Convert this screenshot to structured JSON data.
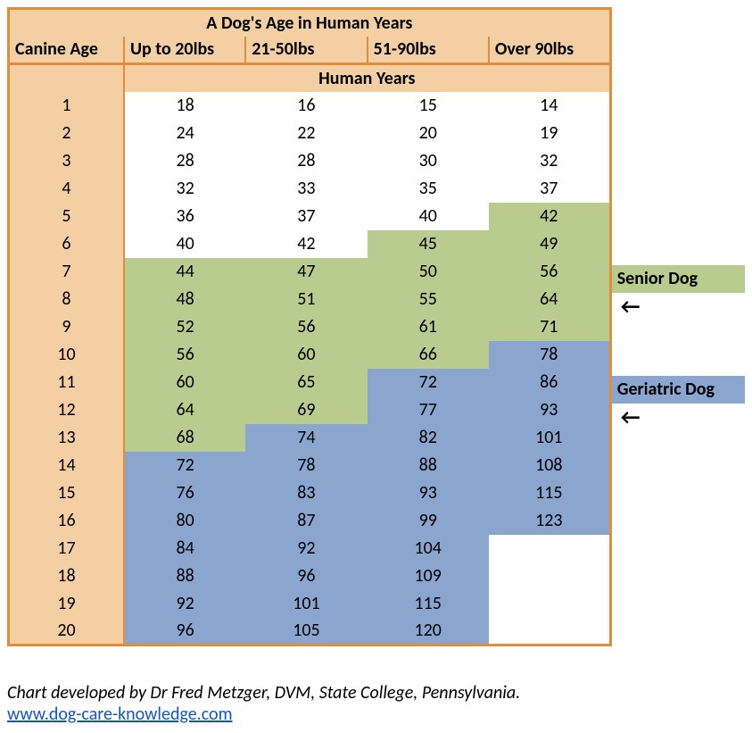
{
  "title": "A Dog's Age in Human Years",
  "columns": [
    "Canine Age",
    "Up to 20lbs",
    "21-50lbs",
    "51-90lbs",
    "Over 90lbs"
  ],
  "subheader": "Human Years",
  "colors": {
    "border": "#e08e3c",
    "header_bg": "#f5cfa4",
    "white": "#ffffff",
    "senior": "#b9cc8f",
    "geriatric": "#8aa6cf"
  },
  "legend": {
    "senior": "Senior Dog",
    "geriatric": "Geriatric Dog",
    "arrow": "←"
  },
  "credit": "Chart developed by Dr Fred Metzger, DVM, State College, Pennsylvania.",
  "url": "www.dog-care-knowledge.com",
  "rows": [
    {
      "age": "1",
      "c1": {
        "v": "18",
        "s": "white"
      },
      "c2": {
        "v": "16",
        "s": "white"
      },
      "c3": {
        "v": "15",
        "s": "white"
      },
      "c4": {
        "v": "14",
        "s": "white"
      }
    },
    {
      "age": "2",
      "c1": {
        "v": "24",
        "s": "white"
      },
      "c2": {
        "v": "22",
        "s": "white"
      },
      "c3": {
        "v": "20",
        "s": "white"
      },
      "c4": {
        "v": "19",
        "s": "white"
      }
    },
    {
      "age": "3",
      "c1": {
        "v": "28",
        "s": "white"
      },
      "c2": {
        "v": "28",
        "s": "white"
      },
      "c3": {
        "v": "30",
        "s": "white"
      },
      "c4": {
        "v": "32",
        "s": "white"
      }
    },
    {
      "age": "4",
      "c1": {
        "v": "32",
        "s": "white"
      },
      "c2": {
        "v": "33",
        "s": "white"
      },
      "c3": {
        "v": "35",
        "s": "white"
      },
      "c4": {
        "v": "37",
        "s": "white"
      }
    },
    {
      "age": "5",
      "c1": {
        "v": "36",
        "s": "white"
      },
      "c2": {
        "v": "37",
        "s": "white"
      },
      "c3": {
        "v": "40",
        "s": "white"
      },
      "c4": {
        "v": "42",
        "s": "senior"
      }
    },
    {
      "age": "6",
      "c1": {
        "v": "40",
        "s": "white"
      },
      "c2": {
        "v": "42",
        "s": "white"
      },
      "c3": {
        "v": "45",
        "s": "senior"
      },
      "c4": {
        "v": "49",
        "s": "senior"
      }
    },
    {
      "age": "7",
      "c1": {
        "v": "44",
        "s": "senior"
      },
      "c2": {
        "v": "47",
        "s": "senior"
      },
      "c3": {
        "v": "50",
        "s": "senior"
      },
      "c4": {
        "v": "56",
        "s": "senior"
      }
    },
    {
      "age": "8",
      "c1": {
        "v": "48",
        "s": "senior"
      },
      "c2": {
        "v": "51",
        "s": "senior"
      },
      "c3": {
        "v": "55",
        "s": "senior"
      },
      "c4": {
        "v": "64",
        "s": "senior"
      }
    },
    {
      "age": "9",
      "c1": {
        "v": "52",
        "s": "senior"
      },
      "c2": {
        "v": "56",
        "s": "senior"
      },
      "c3": {
        "v": "61",
        "s": "senior"
      },
      "c4": {
        "v": "71",
        "s": "senior"
      }
    },
    {
      "age": "10",
      "c1": {
        "v": "56",
        "s": "senior"
      },
      "c2": {
        "v": "60",
        "s": "senior"
      },
      "c3": {
        "v": "66",
        "s": "senior"
      },
      "c4": {
        "v": "78",
        "s": "geri"
      }
    },
    {
      "age": "11",
      "c1": {
        "v": "60",
        "s": "senior"
      },
      "c2": {
        "v": "65",
        "s": "senior"
      },
      "c3": {
        "v": "72",
        "s": "geri"
      },
      "c4": {
        "v": "86",
        "s": "geri"
      }
    },
    {
      "age": "12",
      "c1": {
        "v": "64",
        "s": "senior"
      },
      "c2": {
        "v": "69",
        "s": "senior"
      },
      "c3": {
        "v": "77",
        "s": "geri"
      },
      "c4": {
        "v": "93",
        "s": "geri"
      }
    },
    {
      "age": "13",
      "c1": {
        "v": "68",
        "s": "senior"
      },
      "c2": {
        "v": "74",
        "s": "geri"
      },
      "c3": {
        "v": "82",
        "s": "geri"
      },
      "c4": {
        "v": "101",
        "s": "geri"
      }
    },
    {
      "age": "14",
      "c1": {
        "v": "72",
        "s": "geri"
      },
      "c2": {
        "v": "78",
        "s": "geri"
      },
      "c3": {
        "v": "88",
        "s": "geri"
      },
      "c4": {
        "v": "108",
        "s": "geri"
      }
    },
    {
      "age": "15",
      "c1": {
        "v": "76",
        "s": "geri"
      },
      "c2": {
        "v": "83",
        "s": "geri"
      },
      "c3": {
        "v": "93",
        "s": "geri"
      },
      "c4": {
        "v": "115",
        "s": "geri"
      }
    },
    {
      "age": "16",
      "c1": {
        "v": "80",
        "s": "geri"
      },
      "c2": {
        "v": "87",
        "s": "geri"
      },
      "c3": {
        "v": "99",
        "s": "geri"
      },
      "c4": {
        "v": "123",
        "s": "geri"
      }
    },
    {
      "age": "17",
      "c1": {
        "v": "84",
        "s": "geri"
      },
      "c2": {
        "v": "92",
        "s": "geri"
      },
      "c3": {
        "v": "104",
        "s": "geri"
      },
      "c4": {
        "v": "",
        "s": "white"
      }
    },
    {
      "age": "18",
      "c1": {
        "v": "88",
        "s": "geri"
      },
      "c2": {
        "v": "96",
        "s": "geri"
      },
      "c3": {
        "v": "109",
        "s": "geri"
      },
      "c4": {
        "v": "",
        "s": "white"
      }
    },
    {
      "age": "19",
      "c1": {
        "v": "92",
        "s": "geri"
      },
      "c2": {
        "v": "101",
        "s": "geri"
      },
      "c3": {
        "v": "115",
        "s": "geri"
      },
      "c4": {
        "v": "",
        "s": "white"
      }
    },
    {
      "age": "20",
      "c1": {
        "v": "96",
        "s": "geri"
      },
      "c2": {
        "v": "105",
        "s": "geri"
      },
      "c3": {
        "v": "120",
        "s": "geri"
      },
      "c4": {
        "v": "",
        "s": "white"
      }
    }
  ],
  "legend_rows": [
    "",
    "",
    "",
    "",
    "",
    "",
    "senior",
    "arrow",
    "",
    "",
    "geri",
    "arrow",
    "",
    "",
    "",
    "",
    "",
    "",
    "",
    "",
    ""
  ]
}
